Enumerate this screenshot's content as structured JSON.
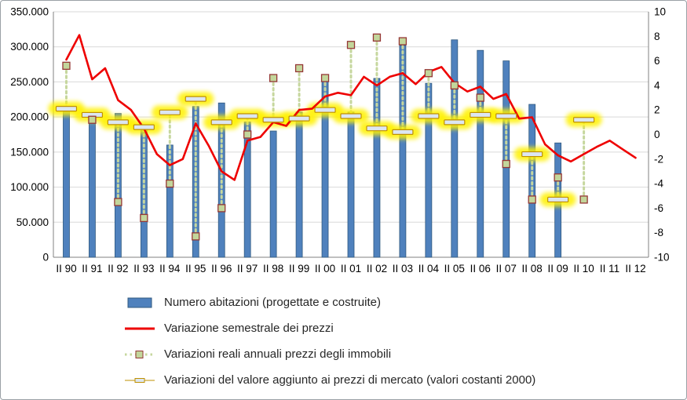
{
  "chart_data": {
    "type": "combo",
    "title": "",
    "grid": true,
    "legend_position": "bottom-left",
    "connector": {
      "color": "#C6D79E",
      "style": "dotted",
      "width": 3
    },
    "x_axis": {
      "frequency": "semestrale",
      "tick_labels": [
        "II 90",
        "II 91",
        "II 92",
        "II 93",
        "II 94",
        "II 95",
        "II 96",
        "II 97",
        "II 98",
        "II 99",
        "II 00",
        "II 01",
        "II 02",
        "II 03",
        "II 04",
        "II 05",
        "II 06",
        "II 07",
        "II 08",
        "II 09",
        "II 10",
        "II 11",
        "II 12"
      ]
    },
    "left_axis": {
      "min": 0,
      "max": 350000,
      "step": 50000,
      "tick_labels": [
        "350.000",
        "300.000",
        "250.000",
        "200.000",
        "150.000",
        "100.000",
        "50.000",
        "0"
      ]
    },
    "right_axis": {
      "min": -10,
      "max": 10,
      "step": 2,
      "tick_labels": [
        "10",
        "8",
        "6",
        "4",
        "2",
        "0",
        "-2",
        "-4",
        "-6",
        "-8",
        "-10"
      ]
    },
    "series": [
      {
        "name": "Numero abitazioni (progettate e costruite)",
        "type": "bar",
        "axis": "left",
        "color": "#4F81BD",
        "x": [
          "90",
          "91",
          "92",
          "93",
          "94",
          "95",
          "96",
          "97",
          "98",
          "99",
          "00",
          "01",
          "02",
          "03",
          "04",
          "05",
          "06",
          "07",
          "08",
          "09"
        ],
        "values": [
          215000,
          193000,
          205000,
          188000,
          160000,
          215000,
          220000,
          193000,
          180000,
          207000,
          260000,
          207000,
          255000,
          302000,
          248000,
          310000,
          295000,
          280000,
          218000,
          163000
        ]
      },
      {
        "name": "Variazione semestrale dei prezzi",
        "type": "line",
        "axis": "right",
        "color": "#EE0000",
        "x_start": "II 90",
        "x_end": "II 12",
        "values": [
          6.1,
          8.1,
          4.5,
          5.4,
          2.8,
          2.0,
          0.5,
          -1.6,
          -2.5,
          -2.0,
          0.9,
          -0.9,
          -3.0,
          -3.7,
          -0.5,
          -0.2,
          1.0,
          0.7,
          2.0,
          2.1,
          3.1,
          3.4,
          3.2,
          4.7,
          4.0,
          4.7,
          5.0,
          4.1,
          5.1,
          5.5,
          4.2,
          3.5,
          3.9,
          2.9,
          3.3,
          1.3,
          1.4,
          -0.8,
          -1.7,
          -2.2,
          -1.6,
          -1.0,
          -0.5,
          -1.2,
          -1.9
        ]
      },
      {
        "name": "Variazioni reali annuali prezzi degli immobili",
        "type": "scatter-squares",
        "axis": "right",
        "marker": {
          "fill": "#C3D69B",
          "stroke": "#953735"
        },
        "x": [
          "90",
          "91",
          "92",
          "93",
          "94",
          "95",
          "96",
          "97",
          "98",
          "99",
          "00",
          "01",
          "02",
          "03",
          "04",
          "05",
          "06",
          "07",
          "08",
          "09",
          "10"
        ],
        "values": [
          5.6,
          1.2,
          -5.5,
          -6.8,
          -4.0,
          -8.3,
          -6.0,
          0.0,
          4.6,
          5.4,
          4.6,
          7.3,
          7.9,
          7.6,
          5.0,
          4.0,
          3.0,
          -2.4,
          -5.3,
          -3.5,
          -5.3
        ]
      },
      {
        "name": "Variazioni del valore aggiunto ai prezzi di mercato (valori costanti 2000)",
        "type": "scatter-dashes",
        "axis": "right",
        "marker": {
          "fill": "#DCE6F1",
          "stroke": "#BF9000",
          "highlight": "#FFF100"
        },
        "x": [
          "90",
          "91",
          "92",
          "93",
          "94",
          "95",
          "96",
          "97",
          "98",
          "99",
          "00",
          "01",
          "02",
          "03",
          "04",
          "05",
          "06",
          "07",
          "08",
          "09",
          "10"
        ],
        "values": [
          2.1,
          1.6,
          1.0,
          0.6,
          1.8,
          2.9,
          1.0,
          1.5,
          1.2,
          1.3,
          2.0,
          1.5,
          0.5,
          0.2,
          1.5,
          1.0,
          1.6,
          1.5,
          -1.6,
          -5.3,
          1.2
        ]
      }
    ]
  }
}
